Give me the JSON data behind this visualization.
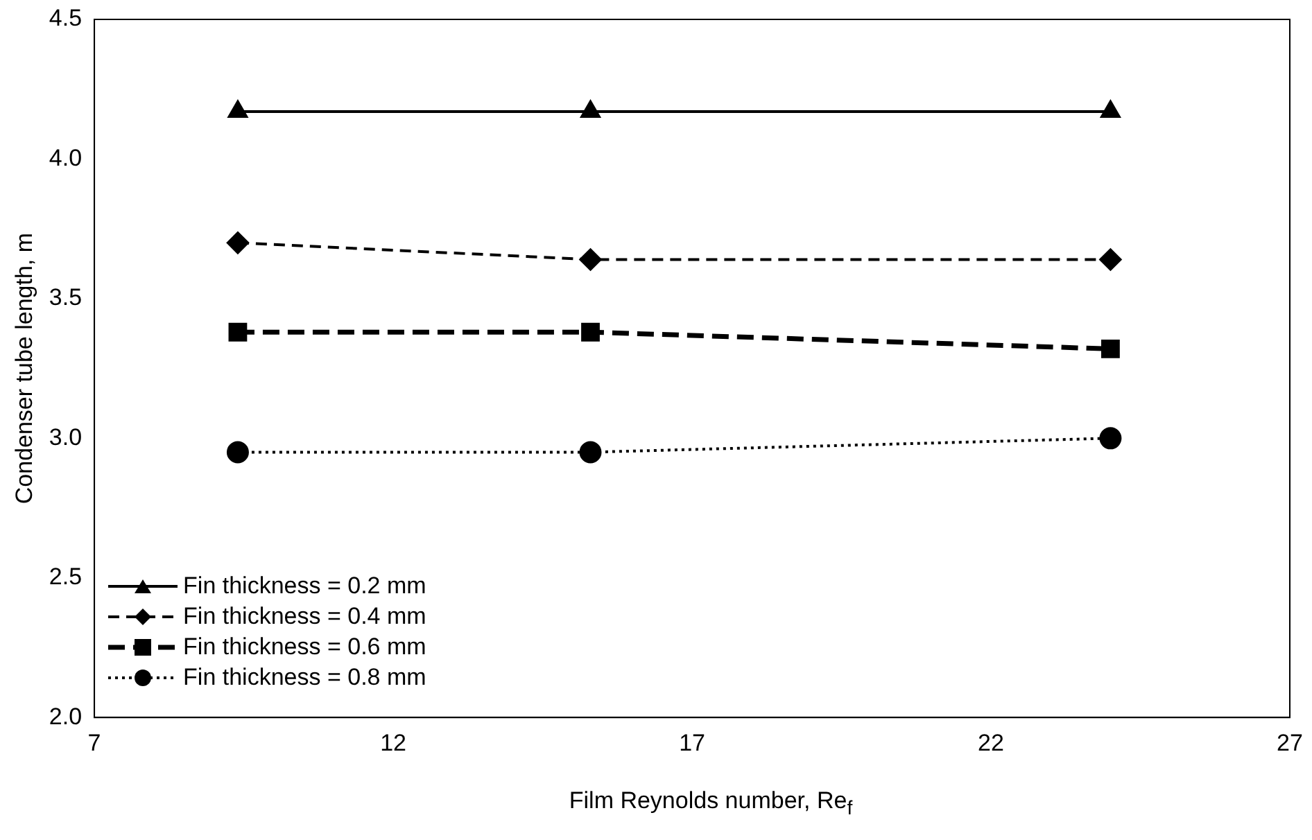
{
  "chart_data": {
    "type": "line",
    "xlabel": "Film Reynolds number, Re$_{f}$",
    "ylabel": "Condenser tube length, m",
    "xlim": [
      7,
      27
    ],
    "xticks": [
      7,
      12,
      17,
      22,
      27
    ],
    "ylim": [
      2.0,
      4.5
    ],
    "yticks": [
      {
        "value": 2.0,
        "label": "2.0"
      },
      {
        "value": 2.5,
        "label": "2.5"
      },
      {
        "value": 3.0,
        "label": "3.0"
      },
      {
        "value": 3.5,
        "label": "3.5"
      },
      {
        "value": 4.0,
        "label": "4.0"
      },
      {
        "value": 4.5,
        "label": "4.5"
      }
    ],
    "grid": false,
    "legend": "bottom left",
    "series": [
      {
        "name": "Fin thickness = 0.2 mm",
        "color": "#000000",
        "x": [
          9.4,
          15.3,
          24
        ],
        "values": [
          4.17,
          4.17,
          4.17
        ],
        "marker": "triangle",
        "line_style": "solid"
      },
      {
        "name": "Fin thickness = 0.4 mm",
        "color": "#000000",
        "x": [
          9.4,
          15.3,
          24
        ],
        "values": [
          3.7,
          3.64,
          3.64
        ],
        "marker": "diamond",
        "line_style": "dashed"
      },
      {
        "name": "Fin thickness = 0.6 mm",
        "color": "#000000",
        "x": [
          9.4,
          15.3,
          24
        ],
        "values": [
          3.38,
          3.38,
          3.32
        ],
        "marker": "square",
        "line_style": "dashed"
      },
      {
        "name": "Fin thickness = 0.8 mm",
        "color": "#000000",
        "x": [
          9.4,
          15.3,
          24
        ],
        "values": [
          2.95,
          2.95,
          3.0
        ],
        "marker": "circle",
        "line_style": "dotted"
      }
    ]
  }
}
